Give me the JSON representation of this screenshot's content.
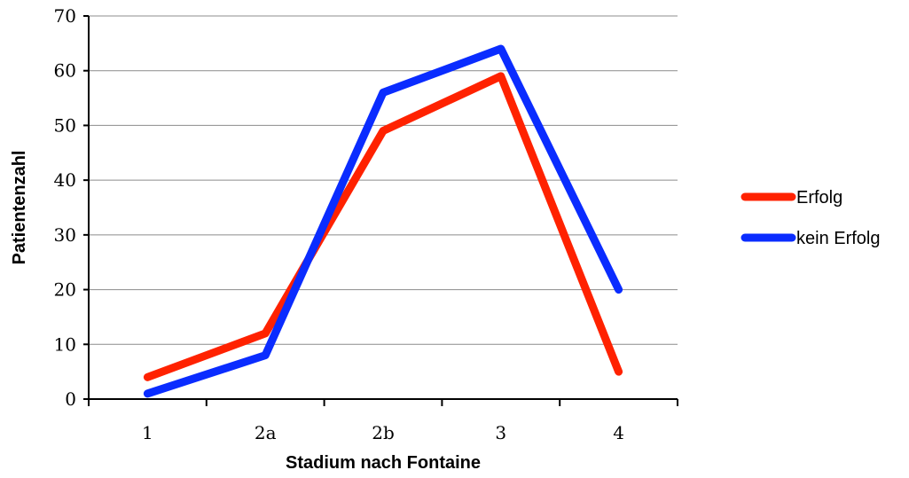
{
  "chart_data": {
    "type": "line",
    "title": "",
    "xlabel": "Stadium nach Fontaine",
    "ylabel": "Patientenzahl",
    "categories": [
      "1",
      "2a",
      "2b",
      "3",
      "4"
    ],
    "ylim": [
      0,
      70
    ],
    "yticks": [
      0,
      10,
      20,
      30,
      40,
      50,
      60,
      70
    ],
    "grid": true,
    "legend_position": "right",
    "series": [
      {
        "name": "Erfolg",
        "color": "#ff2200",
        "values": [
          4,
          12,
          49,
          59,
          5
        ]
      },
      {
        "name": "kein Erfolg",
        "color": "#0a2cff",
        "values": [
          1,
          8,
          56,
          64,
          20
        ]
      }
    ]
  }
}
